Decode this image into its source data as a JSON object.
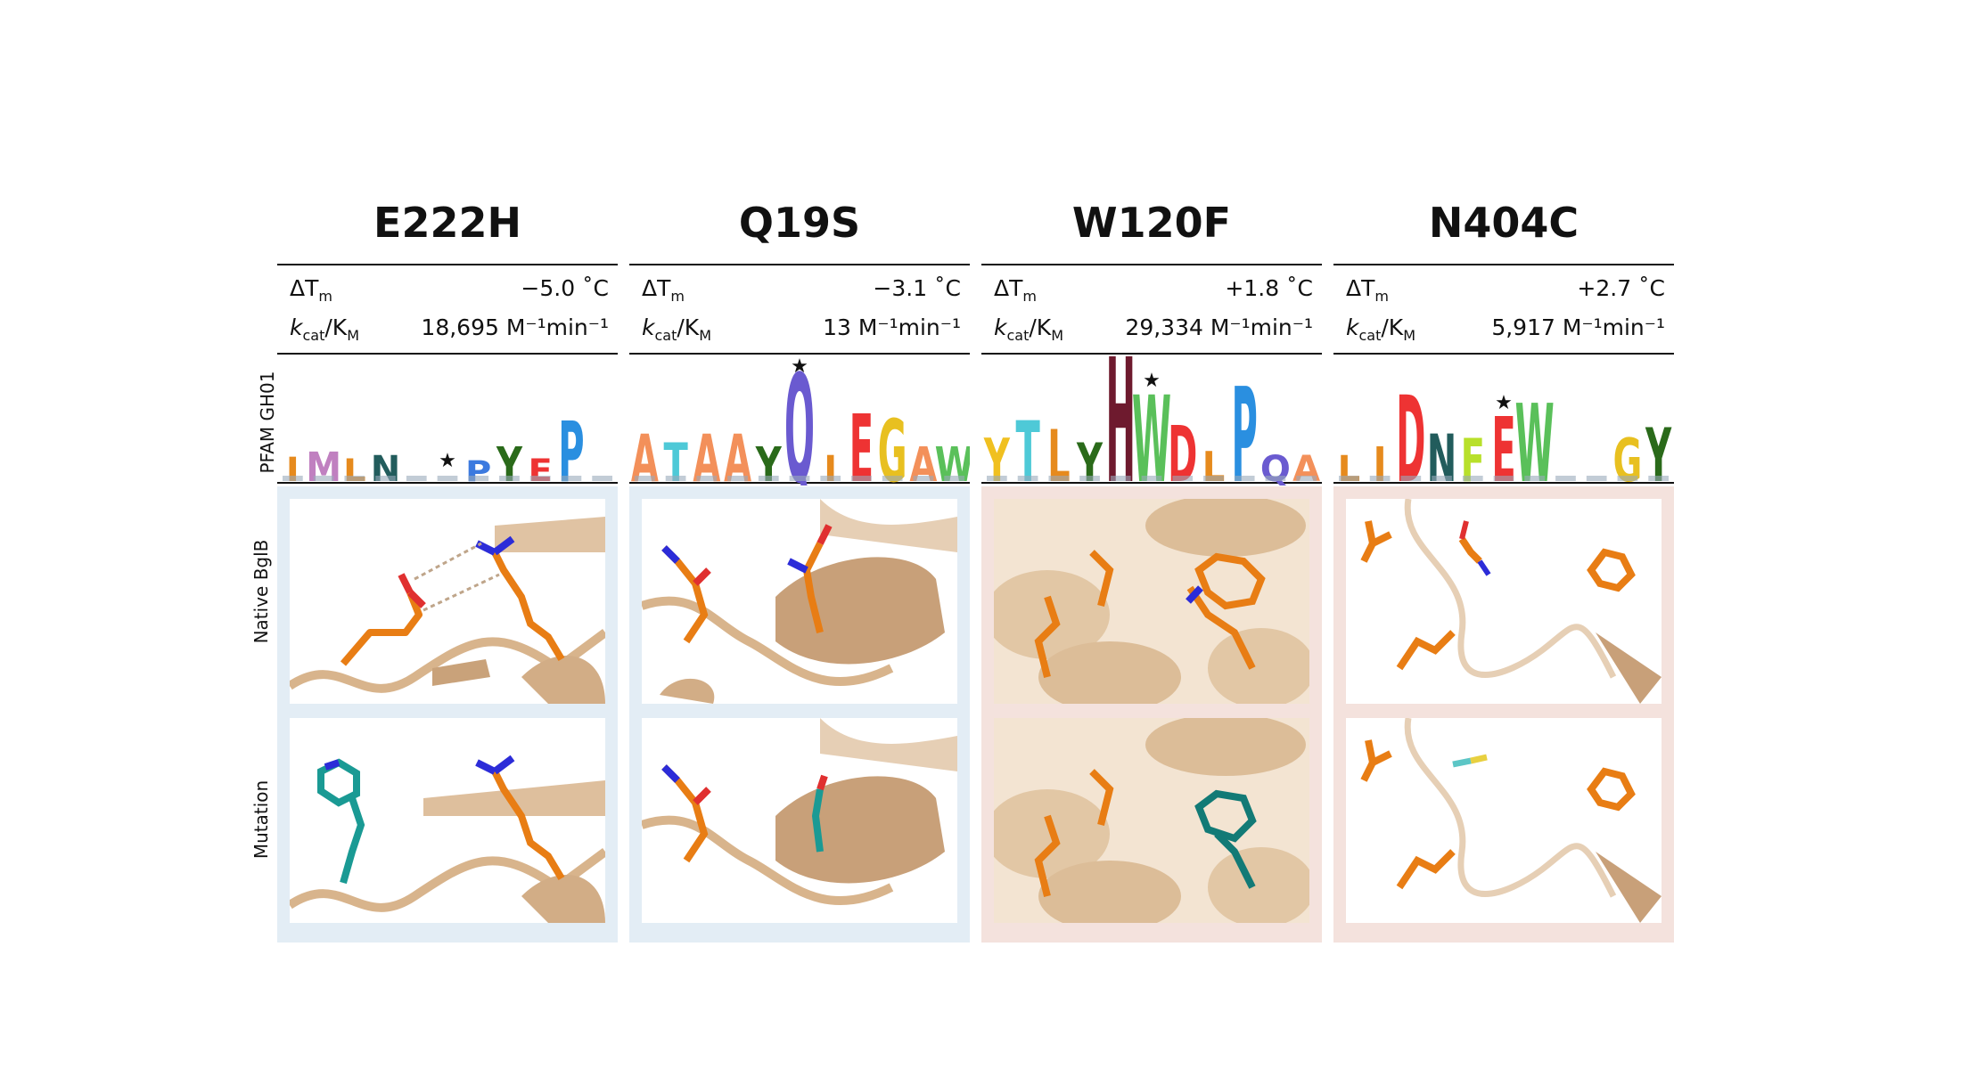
{
  "row_labels": {
    "logo": "PFAM GH01",
    "native": "Native BglB",
    "mutation": "Mutation"
  },
  "stat_labels": {
    "dtm": "ΔT",
    "dtm_sub": "m",
    "kcat": "k",
    "kcat_sub1": "cat",
    "kcat_mid": "/K",
    "kcat_sub2": "M"
  },
  "colors": {
    "stabilizing_panel": "#e3edf5",
    "destabilizing_panel": "#f4e2dd",
    "native_residue": "#e87d14",
    "mutant_residue": "#1a9a94",
    "backbone": "#d8b48c",
    "nitrogen": "#2c2cd8",
    "oxygen": "#e03030"
  },
  "mutants": [
    {
      "name": "E222H",
      "dtm": "−5.0 ˚C",
      "kcat": "18,695 M⁻¹min⁻¹",
      "panel": "blue",
      "logo": [
        [
          "I",
          "#e68a1d"
        ],
        [
          "M",
          "#c080c0"
        ],
        [
          "L",
          "#e68a1d"
        ],
        [
          "N",
          "#225c5c"
        ],
        [
          "",
          "#999"
        ],
        [
          "",
          "#999"
        ],
        [
          "P",
          "#3c7adf"
        ],
        [
          "Y",
          "#2a6a1a"
        ],
        [
          "E",
          "#e33"
        ],
        [
          "P",
          "#2a8fe0"
        ],
        [
          "",
          "#999"
        ]
      ],
      "star_index": 5
    },
    {
      "name": "Q19S",
      "dtm": "−3.1 ˚C",
      "kcat": "13 M⁻¹min⁻¹",
      "panel": "blue",
      "logo": [
        [
          "A",
          "#f3905a"
        ],
        [
          "T",
          "#4ec9d7"
        ],
        [
          "A",
          "#f3905a"
        ],
        [
          "A",
          "#f3905a"
        ],
        [
          "Y",
          "#2a6a1a"
        ],
        [
          "Q",
          "#6a5ad0"
        ],
        [
          "I",
          "#e68a1d"
        ],
        [
          "E",
          "#e33"
        ],
        [
          "G",
          "#e8c020"
        ],
        [
          "A",
          "#f3905a"
        ],
        [
          "W",
          "#5ac05a"
        ]
      ],
      "star_index": 5
    },
    {
      "name": "W120F",
      "dtm": "+1.8 ˚C",
      "kcat": "29,334 M⁻¹min⁻¹",
      "panel": "red",
      "logo": [
        [
          "Y",
          "#f0c020"
        ],
        [
          "T",
          "#4ec9d7"
        ],
        [
          "L",
          "#e68a1d"
        ],
        [
          "Y",
          "#2a6a1a"
        ],
        [
          "H",
          "#6e1a2e"
        ],
        [
          "W",
          "#5ac05a"
        ],
        [
          "D",
          "#e33"
        ],
        [
          "L",
          "#e68a1d"
        ],
        [
          "P",
          "#2a8fe0"
        ],
        [
          "Q",
          "#6a5ad0"
        ],
        [
          "A",
          "#f3905a"
        ]
      ],
      "star_index": 5
    },
    {
      "name": "N404C",
      "dtm": "+2.7 ˚C",
      "kcat": "5,917 M⁻¹min⁻¹",
      "panel": "red",
      "logo": [
        [
          "L",
          "#e68a1d"
        ],
        [
          "I",
          "#e68a1d"
        ],
        [
          "D",
          "#e33"
        ],
        [
          "N",
          "#225c5c"
        ],
        [
          "F",
          "#b8e02a"
        ],
        [
          "E",
          "#e33"
        ],
        [
          "W",
          "#5ac05a"
        ],
        [
          "",
          "#999"
        ],
        [
          "",
          "#999"
        ],
        [
          "G",
          "#e8c020"
        ],
        [
          "Y",
          "#2a6a1a"
        ]
      ],
      "star_index": 5
    }
  ]
}
